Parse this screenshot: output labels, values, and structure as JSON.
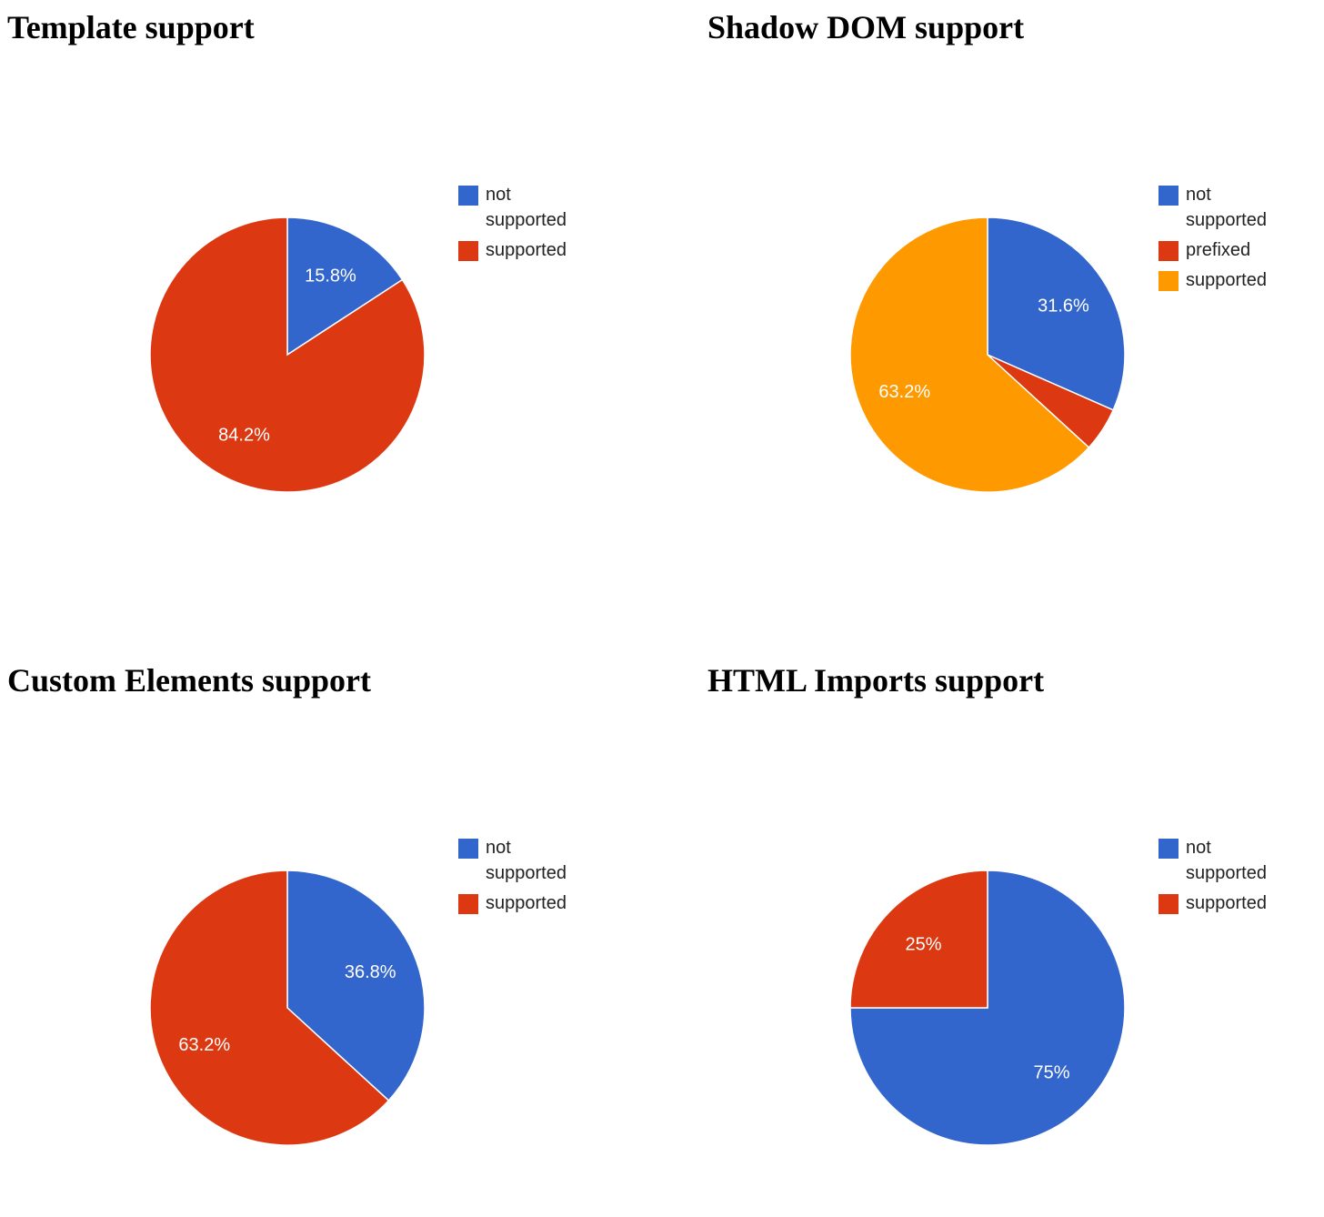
{
  "chart_data": [
    {
      "type": "pie",
      "title": "Template support",
      "slices": [
        {
          "label": "not supported",
          "value": 15.8,
          "display": "15.8%",
          "color": "#3366cc"
        },
        {
          "label": "supported",
          "value": 84.2,
          "display": "84.2%",
          "color": "#dc3912"
        }
      ],
      "legend": "right"
    },
    {
      "type": "pie",
      "title": "Shadow DOM support",
      "slices": [
        {
          "label": "not supported",
          "value": 31.6,
          "display": "31.6%",
          "color": "#3366cc"
        },
        {
          "label": "prefixed",
          "value": 5.2,
          "display": "",
          "color": "#dc3912"
        },
        {
          "label": "supported",
          "value": 63.2,
          "display": "63.2%",
          "color": "#ff9900"
        }
      ],
      "legend": "right"
    },
    {
      "type": "pie",
      "title": "Custom Elements support",
      "slices": [
        {
          "label": "not supported",
          "value": 36.8,
          "display": "36.8%",
          "color": "#3366cc"
        },
        {
          "label": "supported",
          "value": 63.2,
          "display": "63.2%",
          "color": "#dc3912"
        }
      ],
      "legend": "right"
    },
    {
      "type": "pie",
      "title": "HTML Imports support",
      "slices": [
        {
          "label": "not supported",
          "value": 75,
          "display": "75%",
          "color": "#3366cc"
        },
        {
          "label": "supported",
          "value": 25,
          "display": "25%",
          "color": "#dc3912"
        }
      ],
      "legend": "right"
    }
  ]
}
